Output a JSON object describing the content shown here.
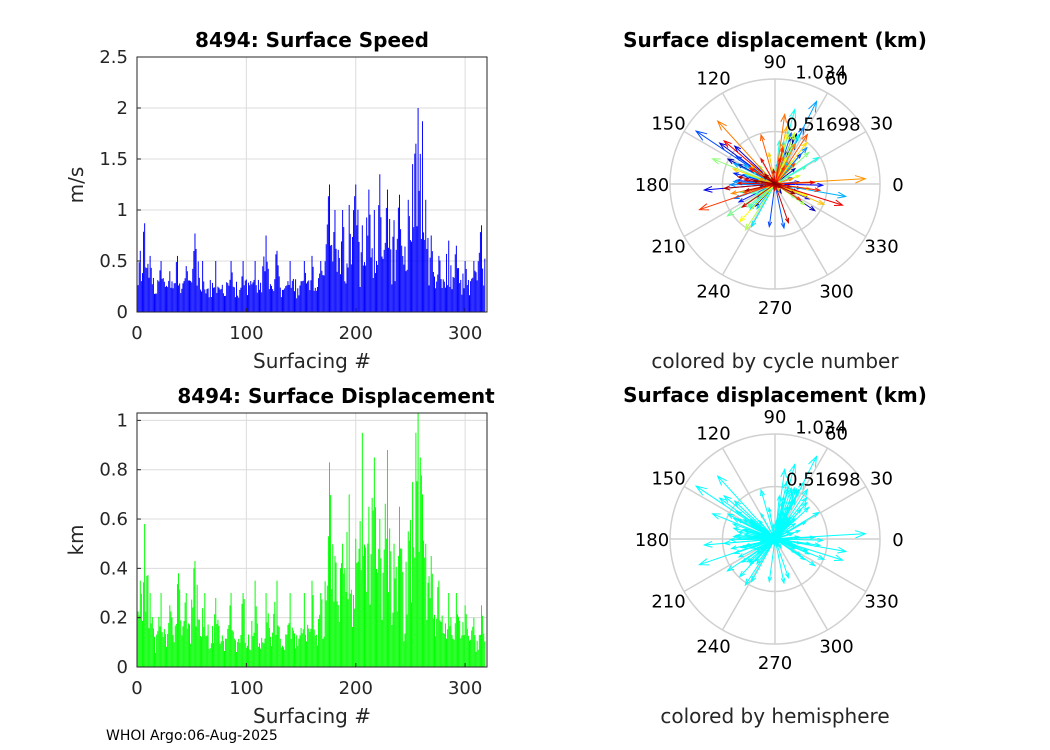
{
  "footer": "WHOI Argo:06-Aug-2025",
  "chart_data": [
    {
      "id": "speed",
      "type": "bar",
      "title": "8494: Surface Speed",
      "xlabel": "Surfacing #",
      "ylabel": "m/s",
      "xlim": [
        0,
        320
      ],
      "ylim": [
        0,
        2.5
      ],
      "xticks": [
        0,
        100,
        200,
        300
      ],
      "yticks": [
        0,
        0.5,
        1,
        1.5,
        2,
        2.5
      ],
      "ytick_labels": [
        "0",
        "0.5",
        "1",
        "1.5",
        "2",
        "2.5"
      ],
      "color": "#0000ff",
      "n": 318,
      "peaks": [
        {
          "x": 3,
          "y": 0.6
        },
        {
          "x": 7,
          "y": 0.87
        },
        {
          "x": 12,
          "y": 0.55
        },
        {
          "x": 22,
          "y": 0.5
        },
        {
          "x": 30,
          "y": 0.4
        },
        {
          "x": 37,
          "y": 0.55
        },
        {
          "x": 45,
          "y": 0.45
        },
        {
          "x": 53,
          "y": 0.77
        },
        {
          "x": 60,
          "y": 0.5
        },
        {
          "x": 72,
          "y": 0.5
        },
        {
          "x": 86,
          "y": 0.5
        },
        {
          "x": 97,
          "y": 0.5
        },
        {
          "x": 108,
          "y": 0.5
        },
        {
          "x": 118,
          "y": 0.75
        },
        {
          "x": 128,
          "y": 0.6
        },
        {
          "x": 140,
          "y": 0.5
        },
        {
          "x": 153,
          "y": 0.5
        },
        {
          "x": 160,
          "y": 0.55
        },
        {
          "x": 168,
          "y": 0.5
        },
        {
          "x": 176,
          "y": 1.25
        },
        {
          "x": 181,
          "y": 1.0
        },
        {
          "x": 188,
          "y": 1.0
        },
        {
          "x": 194,
          "y": 1.05
        },
        {
          "x": 200,
          "y": 1.25
        },
        {
          "x": 206,
          "y": 0.85
        },
        {
          "x": 212,
          "y": 1.2
        },
        {
          "x": 217,
          "y": 1.0
        },
        {
          "x": 222,
          "y": 1.35
        },
        {
          "x": 229,
          "y": 1.2
        },
        {
          "x": 235,
          "y": 0.9
        },
        {
          "x": 240,
          "y": 1.15
        },
        {
          "x": 248,
          "y": 1.1
        },
        {
          "x": 252,
          "y": 1.45
        },
        {
          "x": 255,
          "y": 1.65
        },
        {
          "x": 257,
          "y": 2.0
        },
        {
          "x": 259,
          "y": 1.55
        },
        {
          "x": 261,
          "y": 1.87
        },
        {
          "x": 264,
          "y": 1.1
        },
        {
          "x": 269,
          "y": 0.75
        },
        {
          "x": 276,
          "y": 0.55
        },
        {
          "x": 285,
          "y": 0.7
        },
        {
          "x": 292,
          "y": 0.65
        },
        {
          "x": 300,
          "y": 0.5
        },
        {
          "x": 308,
          "y": 0.5
        },
        {
          "x": 315,
          "y": 0.85
        }
      ]
    },
    {
      "id": "displacement",
      "type": "bar",
      "title": "8494: Surface Displacement",
      "xlabel": "Surfacing #",
      "ylabel": "km",
      "xlim": [
        0,
        320
      ],
      "ylim": [
        0,
        1.03
      ],
      "xticks": [
        0,
        100,
        200,
        300
      ],
      "yticks": [
        0,
        0.2,
        0.4,
        0.6,
        0.8,
        1
      ],
      "ytick_labels": [
        "0",
        "0.2",
        "0.4",
        "0.6",
        "0.8",
        "1"
      ],
      "color": "#00ff00",
      "n": 318,
      "peaks": [
        {
          "x": 3,
          "y": 0.35
        },
        {
          "x": 7,
          "y": 0.58
        },
        {
          "x": 12,
          "y": 0.3
        },
        {
          "x": 22,
          "y": 0.3
        },
        {
          "x": 30,
          "y": 0.25
        },
        {
          "x": 38,
          "y": 0.38
        },
        {
          "x": 45,
          "y": 0.3
        },
        {
          "x": 53,
          "y": 0.43
        },
        {
          "x": 62,
          "y": 0.3
        },
        {
          "x": 72,
          "y": 0.28
        },
        {
          "x": 86,
          "y": 0.3
        },
        {
          "x": 97,
          "y": 0.3
        },
        {
          "x": 108,
          "y": 0.35
        },
        {
          "x": 118,
          "y": 0.3
        },
        {
          "x": 128,
          "y": 0.35
        },
        {
          "x": 140,
          "y": 0.3
        },
        {
          "x": 153,
          "y": 0.3
        },
        {
          "x": 160,
          "y": 0.35
        },
        {
          "x": 168,
          "y": 0.3
        },
        {
          "x": 176,
          "y": 0.83
        },
        {
          "x": 181,
          "y": 0.45
        },
        {
          "x": 188,
          "y": 0.5
        },
        {
          "x": 194,
          "y": 0.7
        },
        {
          "x": 200,
          "y": 0.52
        },
        {
          "x": 206,
          "y": 0.95
        },
        {
          "x": 212,
          "y": 0.65
        },
        {
          "x": 217,
          "y": 0.85
        },
        {
          "x": 222,
          "y": 0.6
        },
        {
          "x": 229,
          "y": 0.88
        },
        {
          "x": 235,
          "y": 0.5
        },
        {
          "x": 240,
          "y": 0.65
        },
        {
          "x": 248,
          "y": 0.55
        },
        {
          "x": 252,
          "y": 0.75
        },
        {
          "x": 255,
          "y": 0.95
        },
        {
          "x": 257,
          "y": 1.03
        },
        {
          "x": 259,
          "y": 0.85
        },
        {
          "x": 261,
          "y": 0.7
        },
        {
          "x": 264,
          "y": 0.5
        },
        {
          "x": 269,
          "y": 0.45
        },
        {
          "x": 276,
          "y": 0.35
        },
        {
          "x": 285,
          "y": 0.3
        },
        {
          "x": 292,
          "y": 0.3
        },
        {
          "x": 300,
          "y": 0.25
        },
        {
          "x": 308,
          "y": 0.2
        },
        {
          "x": 315,
          "y": 0.25
        }
      ]
    },
    {
      "id": "compass-cycle",
      "type": "polar-compass",
      "title": "Surface displacement (km)",
      "caption": "colored by cycle number",
      "angle_labels": [
        "0",
        "30",
        "60",
        "90",
        "120",
        "150",
        "180",
        "210",
        "240",
        "270",
        "300",
        "330"
      ],
      "ring_labels": [
        "1.034",
        "0.51698"
      ],
      "r_max": 1.034,
      "color_mode": "jet",
      "dominant_directions_deg": [
        60,
        70,
        150,
        180,
        210,
        345
      ]
    },
    {
      "id": "compass-hemisphere",
      "type": "polar-compass",
      "title": "Surface displacement (km)",
      "caption": "colored by hemisphere",
      "angle_labels": [
        "0",
        "30",
        "60",
        "90",
        "120",
        "150",
        "180",
        "210",
        "240",
        "270",
        "300",
        "330"
      ],
      "ring_labels": [
        "1.034",
        "0.51698"
      ],
      "r_max": 1.034,
      "color_mode": "single",
      "color": "#00ffff",
      "dominant_directions_deg": [
        60,
        70,
        150,
        180,
        210,
        345
      ]
    }
  ]
}
